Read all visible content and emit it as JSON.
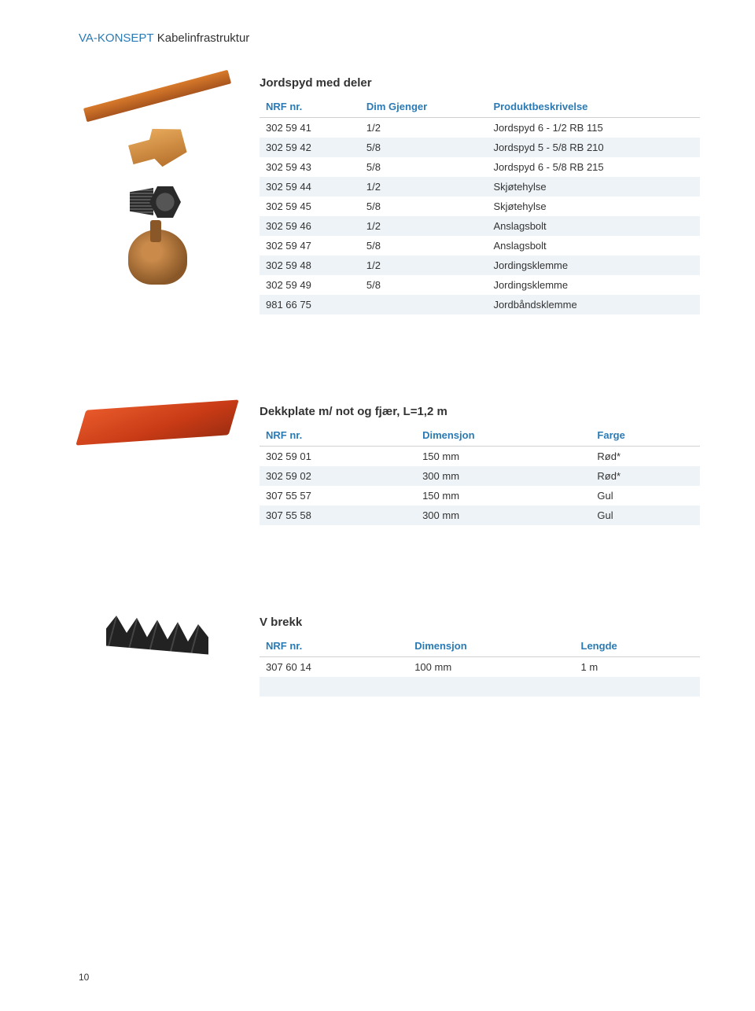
{
  "breadcrumb": {
    "prefix": "VA-KONSEPT",
    "rest": " Kabelinfrastruktur"
  },
  "section1": {
    "title": "Jordspyd med deler",
    "columns": [
      "NRF nr.",
      "Dim Gjenger",
      "Produktbeskrivelse"
    ],
    "rows": [
      [
        "302 59 41",
        "1/2",
        "Jordspyd 6 - 1/2 RB 115"
      ],
      [
        "302 59 42",
        "5/8",
        "Jordspyd 5 - 5/8 RB 210"
      ],
      [
        "302 59 43",
        "5/8",
        "Jordspyd 6 - 5/8 RB 215"
      ],
      [
        "302 59 44",
        "1/2",
        "Skjøtehylse"
      ],
      [
        "302 59 45",
        "5/8",
        "Skjøtehylse"
      ],
      [
        "302 59 46",
        "1/2",
        "Anslagsbolt"
      ],
      [
        "302 59 47",
        "5/8",
        "Anslagsbolt"
      ],
      [
        "302 59 48",
        "1/2",
        "Jordingsklemme"
      ],
      [
        "302 59 49",
        "5/8",
        "Jordingsklemme"
      ],
      [
        "981 66 75",
        "",
        "Jordbåndsklemme"
      ]
    ]
  },
  "section2": {
    "title": "Dekkplate m/ not og fjær, L=1,2 m",
    "columns": [
      "NRF nr.",
      "Dimensjon",
      "Farge"
    ],
    "rows": [
      [
        "302 59 01",
        "150 mm",
        "Rød*"
      ],
      [
        "302 59 02",
        "300 mm",
        "Rød*"
      ],
      [
        "307 55 57",
        "150 mm",
        "Gul"
      ],
      [
        "307 55 58",
        "300 mm",
        "Gul"
      ]
    ]
  },
  "section3": {
    "title": "V brekk",
    "columns": [
      "NRF nr.",
      "Dimensjon",
      "Lengde"
    ],
    "rows": [
      [
        "307 60 14",
        "100 mm",
        "1 m"
      ]
    ]
  },
  "pageNumber": "10"
}
